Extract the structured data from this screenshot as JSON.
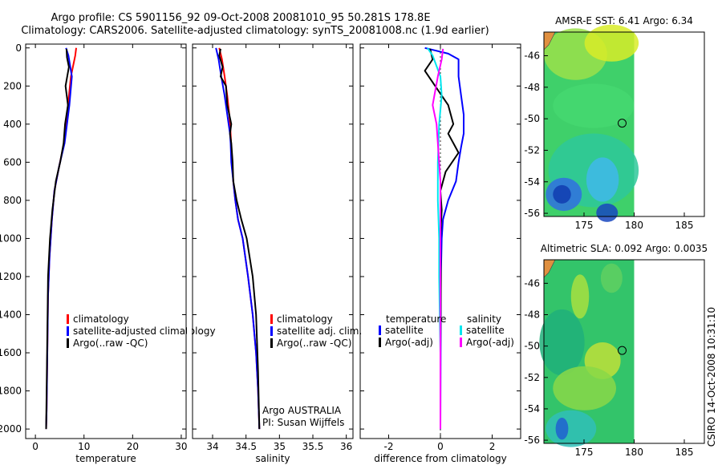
{
  "title": {
    "line1": "Argo profile: CS 5901156_92 09-Oct-2008 20081010_95 50.281S 178.8E",
    "line2": "Climatology: CARS2006. Satellite-adjusted climatology: synTS_20081008.nc (1.9d earlier)"
  },
  "side_stamp": "CSIRO 14-Oct-2008 10:31:10",
  "colors": {
    "red": "#ff0000",
    "blue": "#0000ff",
    "black": "#000000",
    "cyan": "#00e5ee",
    "magenta": "#ff00ff"
  },
  "chart_data": [
    {
      "type": "line",
      "name": "temperature-profile",
      "xlabel": "temperature",
      "ylabel": "",
      "xlim": [
        -2,
        31
      ],
      "ylim": [
        2050,
        -20
      ],
      "xticks": [
        "0",
        "10",
        "20",
        "30"
      ],
      "xtick_values": [
        0,
        10,
        20,
        30
      ],
      "yticks": [
        "0",
        "200",
        "400",
        "600",
        "800",
        "1000",
        "1200",
        "1400",
        "1600",
        "1800",
        "2000"
      ],
      "ytick_values": [
        0,
        200,
        400,
        600,
        800,
        1000,
        1200,
        1400,
        1600,
        1800,
        2000
      ],
      "legend": [
        "climatology",
        "satellite-adjusted climatology",
        "Argo(..raw -QC)"
      ],
      "series": [
        {
          "name": "climatology",
          "color": "red",
          "x": [
            8.4,
            8.2,
            7.3,
            6.7,
            5.9,
            4.9,
            3.9,
            3.4,
            2.9,
            2.6,
            2.5,
            2.4,
            2.3,
            2.2
          ],
          "y": [
            0,
            40,
            150,
            300,
            500,
            620,
            750,
            900,
            1100,
            1300,
            1500,
            1700,
            1900,
            2000
          ]
        },
        {
          "name": "satellite-adjusted climatology",
          "color": "blue",
          "x": [
            6.3,
            6.8,
            7.5,
            7.0,
            6.0,
            4.9,
            3.9,
            3.4,
            2.9,
            2.6,
            2.5,
            2.4,
            2.3,
            2.2
          ],
          "y": [
            0,
            40,
            150,
            300,
            500,
            620,
            750,
            900,
            1100,
            1300,
            1500,
            1700,
            1900,
            2000
          ]
        },
        {
          "name": "Argo(..raw -QC)",
          "color": "black",
          "x": [
            6.4,
            6.5,
            6.9,
            6.2,
            6.7,
            6.1,
            5.8,
            5.1,
            4.2,
            3.5,
            3.0,
            2.6,
            2.5,
            2.4,
            2.3,
            2.2
          ],
          "y": [
            5,
            50,
            100,
            200,
            300,
            400,
            500,
            600,
            700,
            850,
            1000,
            1200,
            1400,
            1600,
            1800,
            2000
          ]
        }
      ]
    },
    {
      "type": "line",
      "name": "salinity-profile",
      "xlabel": "salinity",
      "ylabel": "",
      "xlim": [
        33.7,
        36.1
      ],
      "ylim": [
        2050,
        -20
      ],
      "xticks": [
        "34",
        "34.5",
        "35",
        "35.5",
        "36"
      ],
      "xtick_values": [
        34,
        34.5,
        35,
        35.5,
        36
      ],
      "legend": [
        "climatology",
        "satellite adj. clim.",
        "Argo(..raw -QC)"
      ],
      "annotations": [
        "Argo AUSTRALIA",
        "PI: Susan Wijffels"
      ],
      "series": [
        {
          "name": "climatology",
          "color": "red",
          "x": [
            34.1,
            34.14,
            34.18,
            34.22,
            34.25,
            34.27,
            34.29,
            34.31,
            34.34,
            34.38,
            34.45,
            34.53,
            34.6,
            34.65,
            34.68,
            34.7
          ],
          "y": [
            0,
            60,
            150,
            250,
            350,
            450,
            600,
            700,
            800,
            900,
            1000,
            1200,
            1400,
            1600,
            1800,
            2000
          ]
        },
        {
          "name": "satellite adj. clim.",
          "color": "blue",
          "x": [
            34.05,
            34.09,
            34.13,
            34.18,
            34.22,
            34.26,
            34.27,
            34.28,
            34.31,
            34.34,
            34.38,
            34.45,
            34.53,
            34.6,
            34.65,
            34.68,
            34.7
          ],
          "y": [
            0,
            60,
            150,
            250,
            350,
            450,
            500,
            600,
            700,
            800,
            900,
            1000,
            1200,
            1400,
            1600,
            1800,
            2000
          ]
        },
        {
          "name": "Argo(..raw -QC)",
          "color": "black",
          "x": [
            34.12,
            34.1,
            34.15,
            34.12,
            34.2,
            34.22,
            34.28,
            34.26,
            34.28,
            34.3,
            34.31,
            34.36,
            34.43,
            34.51,
            34.6,
            34.65,
            34.68,
            34.7
          ],
          "y": [
            5,
            40,
            100,
            150,
            200,
            300,
            400,
            450,
            500,
            600,
            700,
            800,
            900,
            1000,
            1200,
            1400,
            1700,
            2000
          ]
        }
      ]
    },
    {
      "type": "line",
      "name": "difference-profile",
      "xlabel": "difference from climatology",
      "ylabel": "",
      "xlim": [
        -3.1,
        3.1
      ],
      "ylim": [
        2050,
        -20
      ],
      "xticks": [
        "-2",
        "0",
        "2"
      ],
      "xtick_values": [
        -2,
        0,
        2
      ],
      "legend_headers": [
        "temperature",
        "salinity"
      ],
      "legend": [
        "satellite",
        "Argo(-adj)",
        "satellite",
        "Argo(-adj)"
      ],
      "series": [
        {
          "name": "temperature satellite",
          "color": "blue",
          "x": [
            -0.6,
            0.3,
            0.7,
            0.7,
            0.8,
            0.9,
            0.9,
            0.8,
            0.7,
            0.6,
            0.3,
            0.1,
            0.05,
            0.02,
            0.01,
            0.0
          ],
          "y": [
            0,
            30,
            60,
            150,
            250,
            350,
            450,
            520,
            600,
            700,
            800,
            900,
            1000,
            1200,
            1600,
            2000
          ]
        },
        {
          "name": "temperature Argo(-adj)",
          "color": "black",
          "x": [
            -0.4,
            -0.3,
            -0.6,
            -0.2,
            0.3,
            0.5,
            0.3,
            0.7,
            0.2,
            0.0,
            0.05,
            0.0,
            0.02,
            0.0,
            0.0
          ],
          "y": [
            5,
            60,
            120,
            200,
            300,
            400,
            450,
            550,
            650,
            750,
            850,
            1000,
            1200,
            1600,
            2000
          ]
        },
        {
          "name": "salinity satellite",
          "color": "cyan",
          "x": [
            -0.5,
            -0.3,
            0.0,
            0.05,
            -0.05,
            -0.1,
            -0.1,
            -0.05,
            -0.05,
            0.0,
            0.0
          ],
          "y": [
            0,
            40,
            150,
            250,
            400,
            600,
            800,
            1000,
            1200,
            1600,
            2000
          ]
        },
        {
          "name": "salinity Argo(-adj)",
          "color": "magenta",
          "x": [
            0.1,
            0.05,
            -0.1,
            -0.3,
            -0.15,
            -0.1,
            0.0,
            0.0,
            0.0
          ],
          "y": [
            5,
            60,
            150,
            300,
            400,
            500,
            700,
            1000,
            2000
          ]
        }
      ]
    },
    {
      "type": "heatmap",
      "name": "sst-map",
      "title": "AMSR-E SST: 6.41 Argo: 6.34",
      "xlim": [
        171,
        187
      ],
      "ylim": [
        -56.2,
        -44.5
      ],
      "xticks": [
        "175",
        "180",
        "185"
      ],
      "xtick_values": [
        175,
        180,
        185
      ],
      "yticks": [
        "-46",
        "-48",
        "-50",
        "-52",
        "-54",
        "-56"
      ],
      "ytick_values": [
        -46,
        -48,
        -50,
        -52,
        -54,
        -56
      ],
      "data_extent_lon": [
        171,
        180
      ],
      "marker": {
        "lon": 178.8,
        "lat": -50.28
      }
    },
    {
      "type": "heatmap",
      "name": "sla-map",
      "title": "Altimetric SLA: 0.092 Argo: 0.0035",
      "xlim": [
        171,
        187
      ],
      "ylim": [
        -56.2,
        -44.5
      ],
      "xticks": [
        "175",
        "180",
        "185"
      ],
      "xtick_values": [
        175,
        180,
        185
      ],
      "yticks": [
        "-46",
        "-48",
        "-50",
        "-52",
        "-54",
        "-56"
      ],
      "ytick_values": [
        -46,
        -48,
        -50,
        -52,
        -54,
        -56
      ],
      "data_extent_lon": [
        171,
        180
      ],
      "marker": {
        "lon": 178.8,
        "lat": -50.28
      }
    }
  ]
}
